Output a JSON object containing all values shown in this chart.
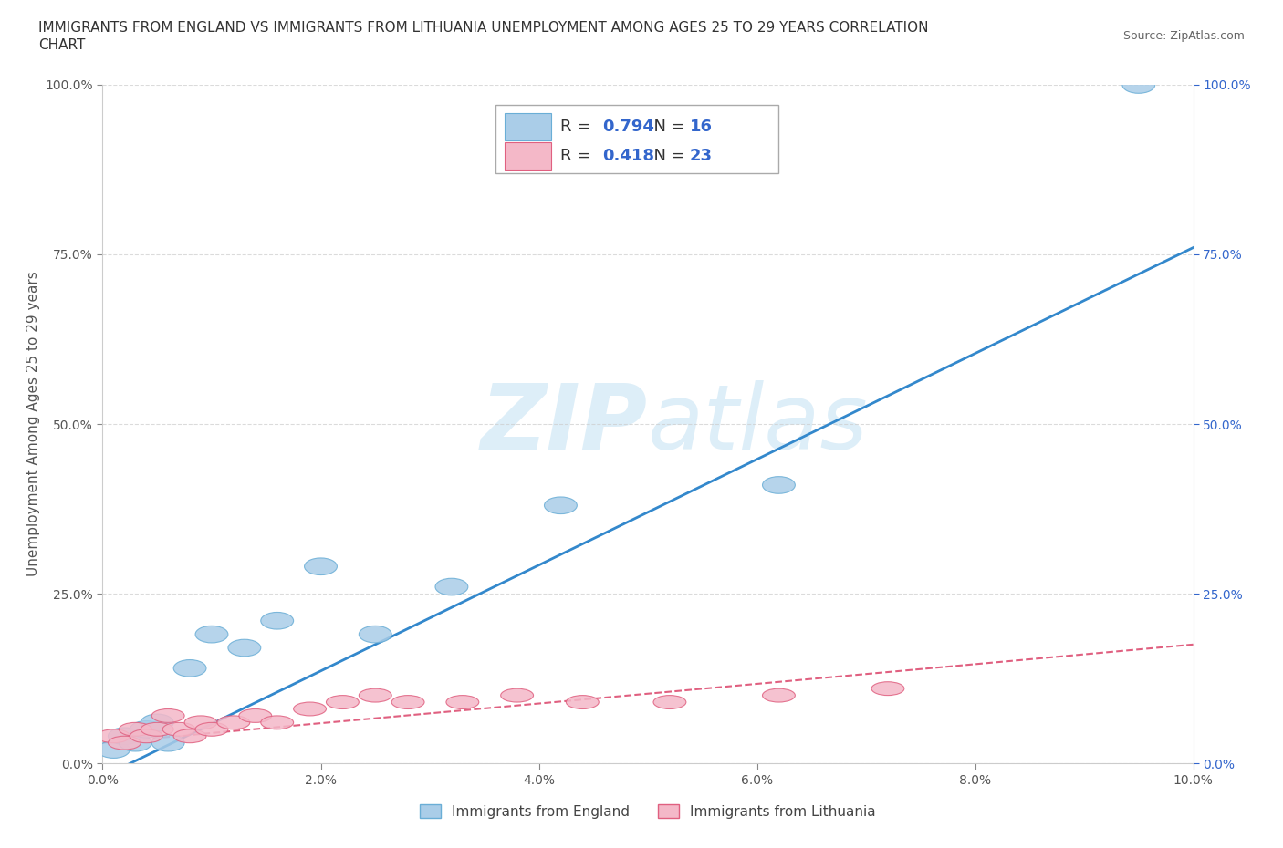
{
  "title_line1": "IMMIGRANTS FROM ENGLAND VS IMMIGRANTS FROM LITHUANIA UNEMPLOYMENT AMONG AGES 25 TO 29 YEARS CORRELATION",
  "title_line2": "CHART",
  "source": "Source: ZipAtlas.com",
  "ylabel": "Unemployment Among Ages 25 to 29 years",
  "xlim": [
    0.0,
    0.1
  ],
  "ylim": [
    0.0,
    1.0
  ],
  "xticks": [
    0.0,
    0.02,
    0.04,
    0.06,
    0.08,
    0.1
  ],
  "xticklabels": [
    "0.0%",
    "2.0%",
    "4.0%",
    "6.0%",
    "8.0%",
    "10.0%"
  ],
  "yticks": [
    0.0,
    0.25,
    0.5,
    0.75,
    1.0
  ],
  "yticklabels": [
    "0.0%",
    "25.0%",
    "50.0%",
    "75.0%",
    "100.0%"
  ],
  "england_color": "#aacde8",
  "england_edge": "#6aaed6",
  "lithuania_color": "#f4b8c8",
  "lithuania_edge": "#e06080",
  "england_R": 0.794,
  "england_N": 16,
  "lithuania_R": 0.418,
  "lithuania_N": 23,
  "england_line_color": "#3388cc",
  "lithuania_line_color": "#e06080",
  "r_n_color": "#3366cc",
  "watermark_color": "#ddeef8",
  "background_color": "#ffffff",
  "grid_color": "#cccccc",
  "legend_fontsize": 13,
  "title_fontsize": 11,
  "axis_label_fontsize": 11,
  "tick_fontsize": 10,
  "england_x": [
    0.001,
    0.002,
    0.003,
    0.004,
    0.005,
    0.006,
    0.008,
    0.01,
    0.013,
    0.016,
    0.02,
    0.025,
    0.032,
    0.042,
    0.062,
    0.095
  ],
  "england_y": [
    0.02,
    0.04,
    0.03,
    0.05,
    0.06,
    0.03,
    0.14,
    0.19,
    0.17,
    0.21,
    0.29,
    0.19,
    0.26,
    0.38,
    0.41,
    1.0
  ],
  "lithuania_x": [
    0.001,
    0.002,
    0.003,
    0.004,
    0.005,
    0.006,
    0.007,
    0.008,
    0.009,
    0.01,
    0.012,
    0.014,
    0.016,
    0.019,
    0.022,
    0.025,
    0.028,
    0.033,
    0.038,
    0.044,
    0.052,
    0.062,
    0.072
  ],
  "lithuania_y": [
    0.04,
    0.03,
    0.05,
    0.04,
    0.05,
    0.07,
    0.05,
    0.04,
    0.06,
    0.05,
    0.06,
    0.07,
    0.06,
    0.08,
    0.09,
    0.1,
    0.09,
    0.09,
    0.1,
    0.09,
    0.09,
    0.1,
    0.11
  ],
  "eng_line_x0": 0.0,
  "eng_line_y0": -0.02,
  "eng_line_x1": 0.1,
  "eng_line_y1": 0.76,
  "lit_line_x0": 0.0,
  "lit_line_y0": 0.03,
  "lit_line_x1": 0.1,
  "lit_line_y1": 0.175
}
